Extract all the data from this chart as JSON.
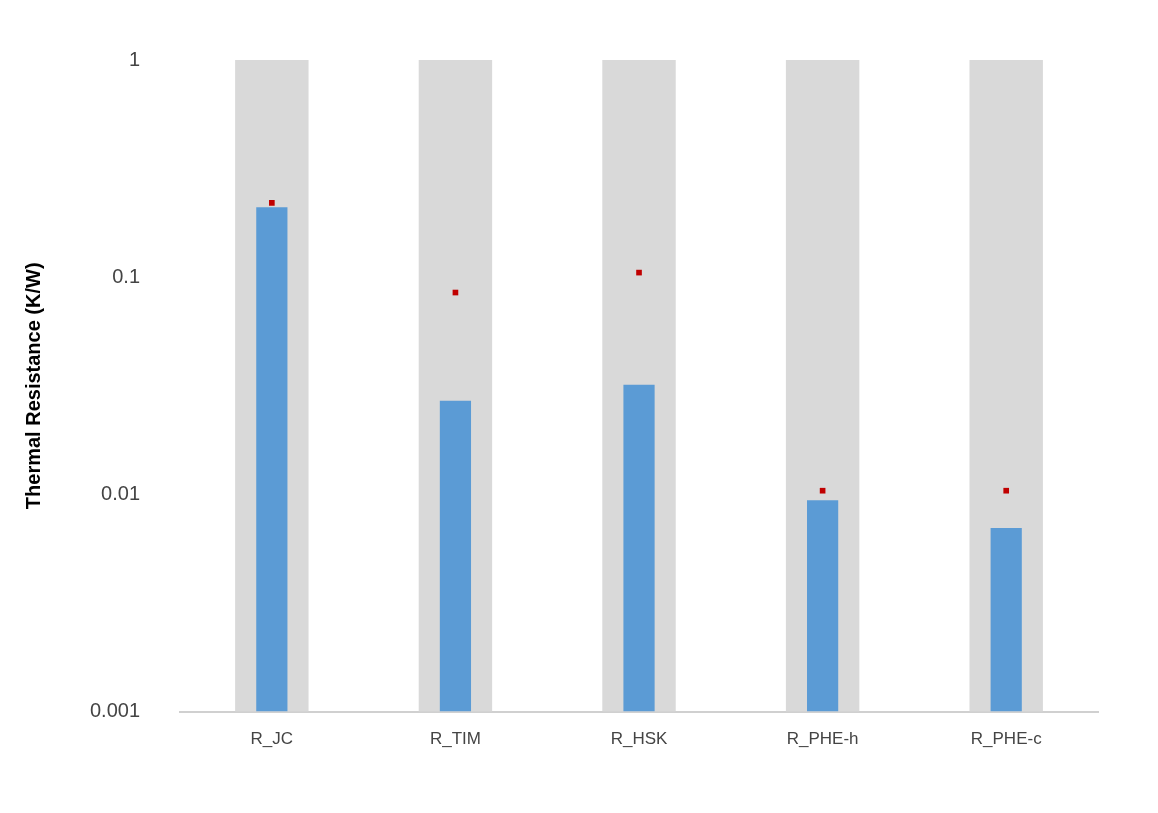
{
  "chart_data": {
    "type": "bar",
    "ylabel": "Thermal Resistance (K/W)",
    "categories": [
      "R_JC",
      "R_TIM",
      "R_HSK",
      "R_PHE-h",
      "R_PHE-c"
    ],
    "series": [
      {
        "color": "#d9d9d9",
        "values": [
          1,
          1,
          1,
          1,
          1
        ]
      },
      {
        "color": "#5b9bd5",
        "values": [
          0.21,
          0.027,
          0.032,
          0.0094,
          0.007
        ]
      },
      {
        "type": "scatter",
        "color": "#c00000",
        "values": [
          0.22,
          0.085,
          0.105,
          0.0104,
          0.0104
        ]
      }
    ],
    "marker": "square",
    "log": "y",
    "ylim": [
      0.001,
      1
    ],
    "yticks": [
      0.001,
      0.01,
      0.1,
      1
    ],
    "grid": false,
    "legend": false
  }
}
